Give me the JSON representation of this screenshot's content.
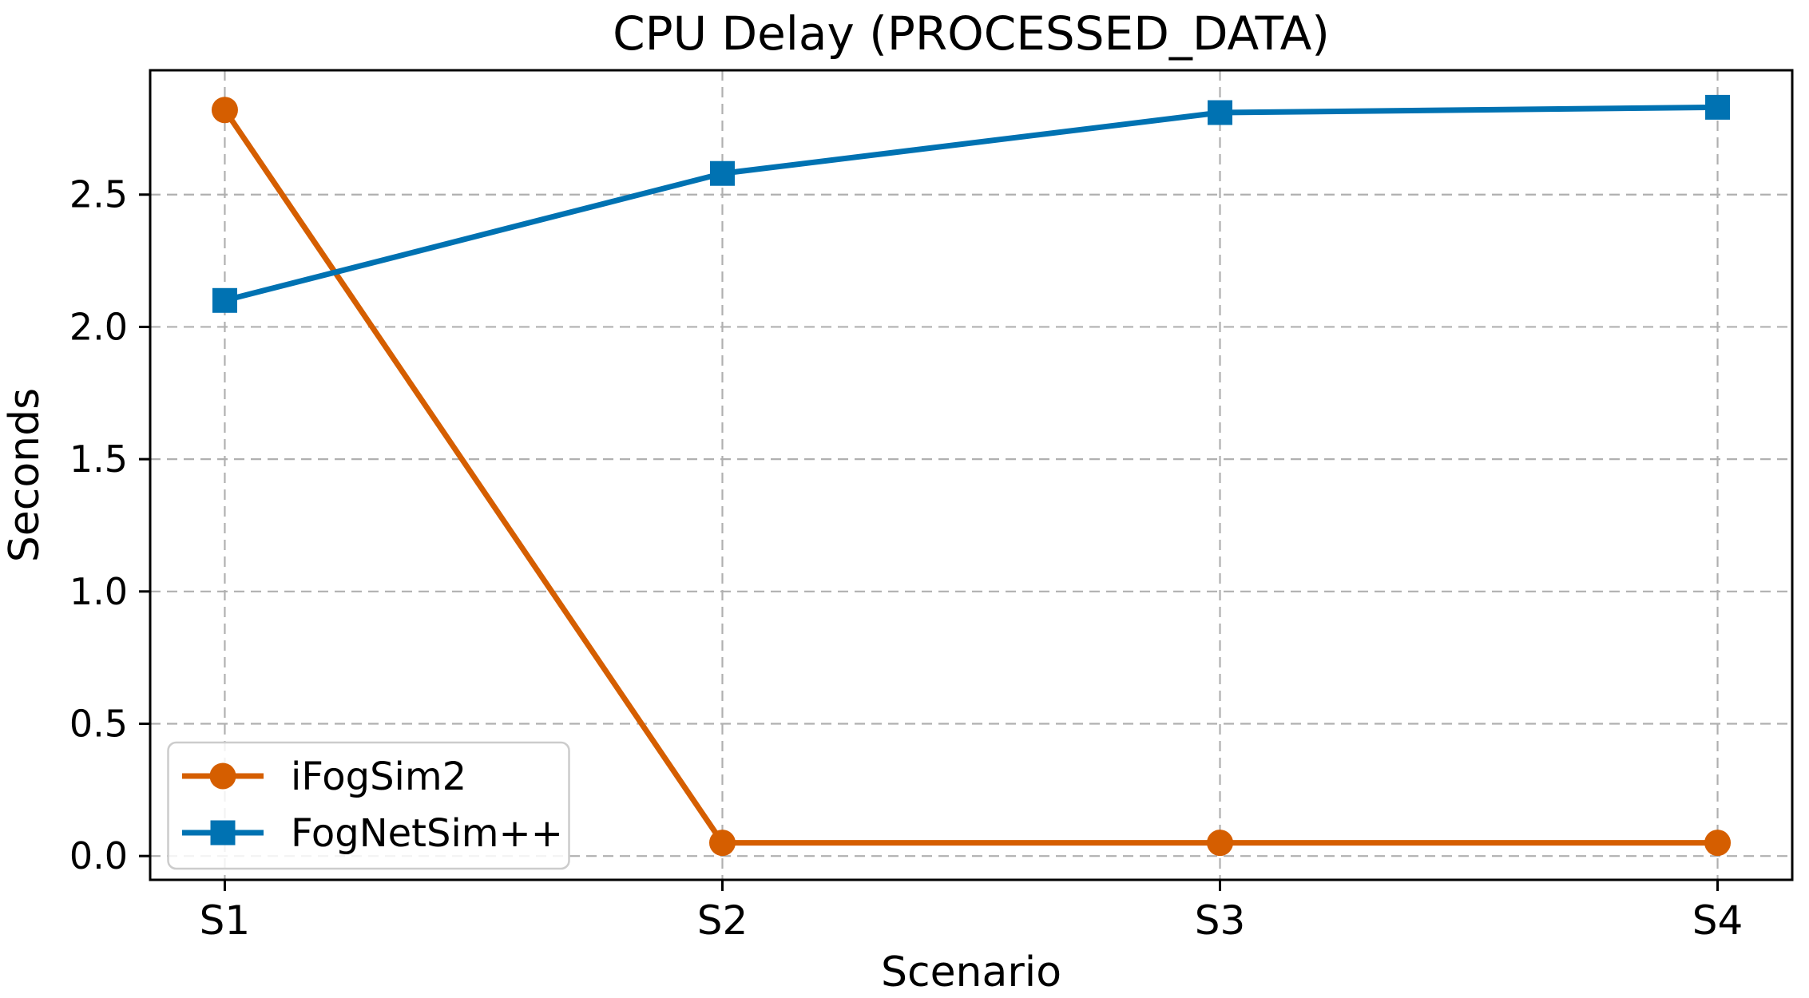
{
  "chart_data": {
    "type": "line",
    "title": "CPU Delay (PROCESSED_DATA)",
    "xlabel": "Scenario",
    "ylabel": "Seconds",
    "categories": [
      "S1",
      "S2",
      "S3",
      "S4"
    ],
    "series": [
      {
        "name": "iFogSim2",
        "marker": "circle",
        "color": "#D55E00",
        "values": [
          2.82,
          0.05,
          0.05,
          0.05
        ]
      },
      {
        "name": "FogNetSim++",
        "marker": "square",
        "color": "#0072B2",
        "values": [
          2.1,
          2.58,
          2.81,
          2.83
        ]
      }
    ],
    "y_ticks": [
      0.0,
      0.5,
      1.0,
      1.5,
      2.0,
      2.5
    ],
    "y_tick_labels": [
      "0.0",
      "0.5",
      "1.0",
      "1.5",
      "2.0",
      "2.5"
    ],
    "ylim": [
      -0.09,
      2.97
    ],
    "x_margin": 0.15,
    "grid": "on",
    "grid_style": "dashed",
    "grid_color": "#b0b0b0",
    "legend_position": "lower left",
    "legend_border_color": "#cccccc",
    "background": "#ffffff",
    "text_color": "#000000"
  }
}
